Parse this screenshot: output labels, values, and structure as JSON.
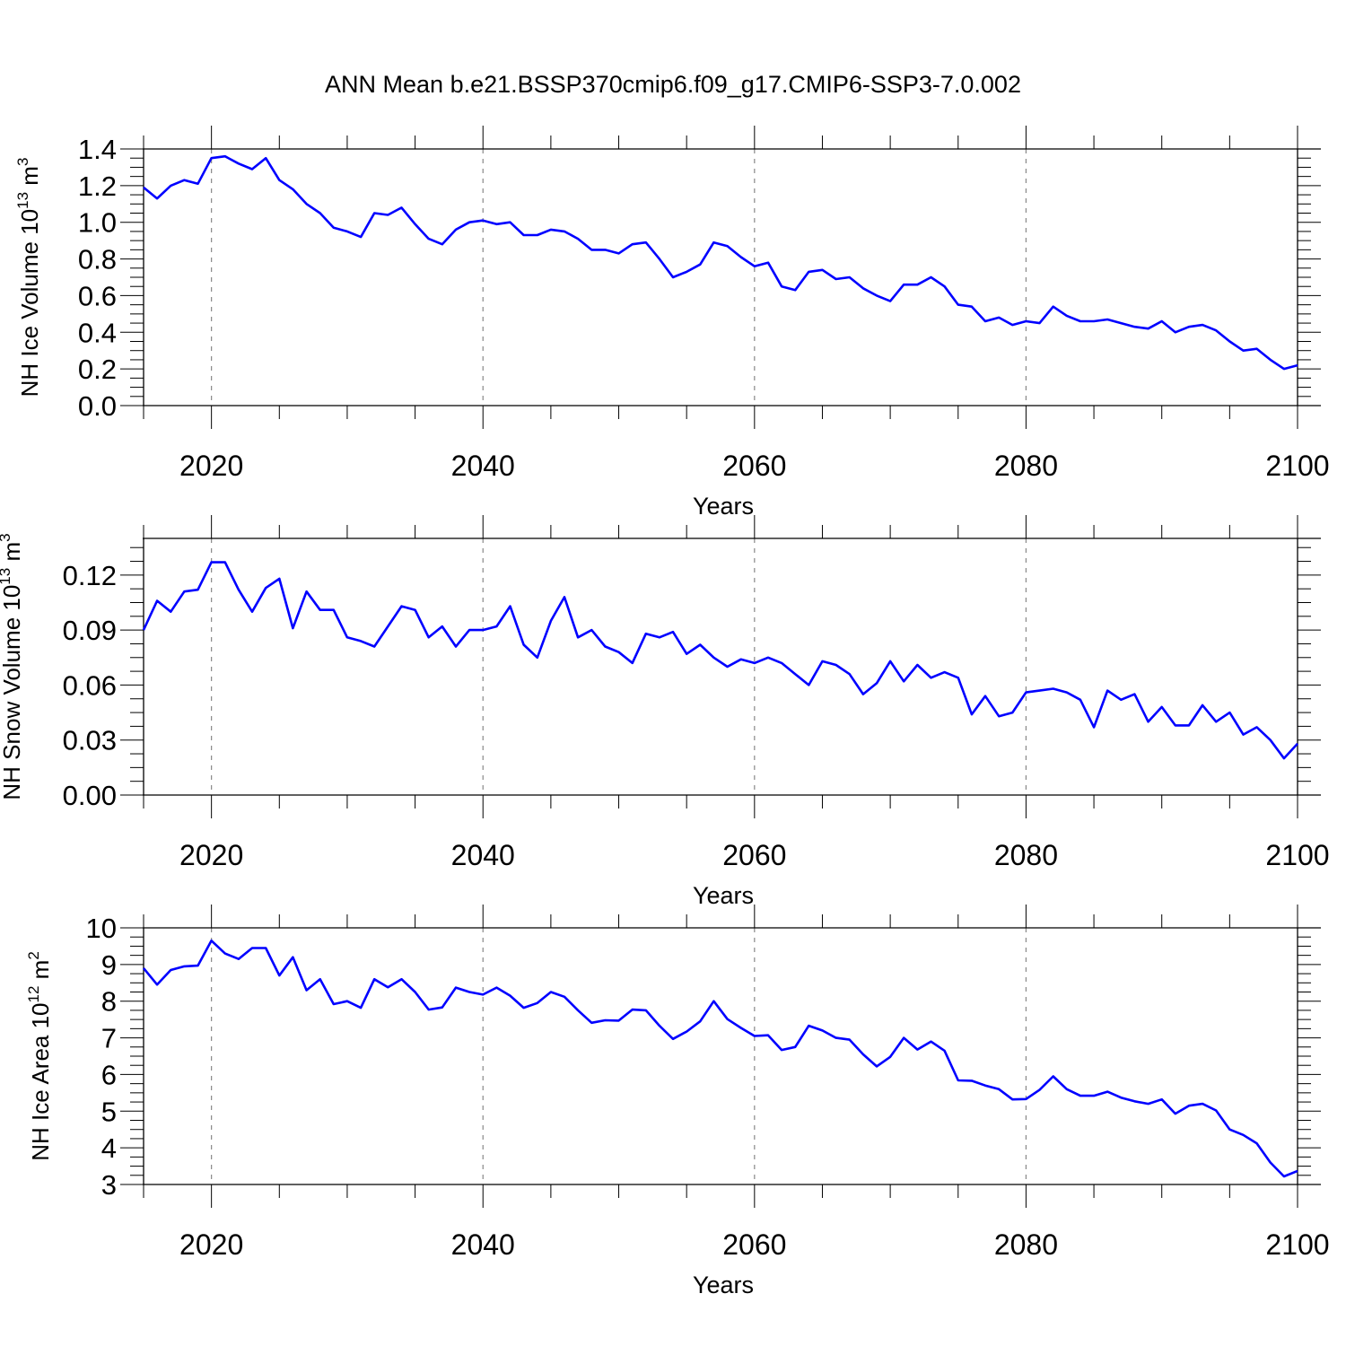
{
  "figure": {
    "title": "ANN Mean b.e21.BSSP370cmip6.f09_g17.CMIP6-SSP3-7.0.002"
  },
  "chart_data": [
    {
      "type": "line",
      "title": "",
      "xlabel": "Years",
      "ylabel": {
        "base": "NH Ice Volume 10",
        "exp": "13",
        "unit": " m",
        "unit_exp": "3"
      },
      "xlim": [
        2015,
        2100
      ],
      "ylim": [
        0.0,
        1.4
      ],
      "xticks": [
        2020,
        2040,
        2060,
        2080,
        2100
      ],
      "xtick_labels": [
        "2020",
        "2040",
        "2060",
        "2080",
        "2100"
      ],
      "yticks": [
        0.0,
        0.2,
        0.4,
        0.6,
        0.8,
        1.0,
        1.2,
        1.4
      ],
      "ytick_labels": [
        "0.0",
        "0.2",
        "0.4",
        "0.6",
        "0.8",
        "1.0",
        "1.2",
        "1.4"
      ],
      "grid": "dashed vertical at major x ticks",
      "series": [
        {
          "color": "#0000ff",
          "x_start": 2015,
          "x_step": 1,
          "values": [
            1.19,
            1.13,
            1.2,
            1.23,
            1.21,
            1.35,
            1.36,
            1.32,
            1.29,
            1.35,
            1.23,
            1.18,
            1.1,
            1.05,
            0.97,
            0.95,
            0.92,
            1.05,
            1.04,
            1.08,
            0.99,
            0.91,
            0.88,
            0.96,
            1.0,
            1.01,
            0.99,
            1.0,
            0.93,
            0.93,
            0.96,
            0.95,
            0.91,
            0.85,
            0.85,
            0.83,
            0.88,
            0.89,
            0.8,
            0.7,
            0.73,
            0.77,
            0.89,
            0.87,
            0.81,
            0.76,
            0.78,
            0.65,
            0.63,
            0.73,
            0.74,
            0.69,
            0.7,
            0.64,
            0.6,
            0.57,
            0.66,
            0.66,
            0.7,
            0.65,
            0.55,
            0.54,
            0.46,
            0.48,
            0.44,
            0.46,
            0.45,
            0.54,
            0.49,
            0.46,
            0.46,
            0.47,
            0.45,
            0.43,
            0.42,
            0.46,
            0.4,
            0.43,
            0.44,
            0.41,
            0.35,
            0.3,
            0.31,
            0.25,
            0.2,
            0.22
          ]
        }
      ]
    },
    {
      "type": "line",
      "title": "",
      "xlabel": "Years",
      "ylabel": {
        "base": "NH Snow Volume 10",
        "exp": "13",
        "unit": " m",
        "unit_exp": "3"
      },
      "xlim": [
        2015,
        2100
      ],
      "ylim": [
        0.0,
        0.14
      ],
      "xticks": [
        2020,
        2040,
        2060,
        2080,
        2100
      ],
      "xtick_labels": [
        "2020",
        "2040",
        "2060",
        "2080",
        "2100"
      ],
      "yticks": [
        0.0,
        0.03,
        0.06,
        0.09,
        0.12
      ],
      "ytick_labels": [
        "0.00",
        "0.03",
        "0.06",
        "0.09",
        "0.12"
      ],
      "grid": "dashed vertical at major x ticks",
      "series": [
        {
          "color": "#0000ff",
          "x_start": 2015,
          "x_step": 1,
          "values": [
            0.09,
            0.106,
            0.1,
            0.111,
            0.112,
            0.127,
            0.127,
            0.112,
            0.1,
            0.113,
            0.118,
            0.091,
            0.111,
            0.101,
            0.101,
            0.086,
            0.084,
            0.081,
            0.092,
            0.103,
            0.101,
            0.086,
            0.092,
            0.081,
            0.09,
            0.09,
            0.092,
            0.103,
            0.082,
            0.075,
            0.095,
            0.108,
            0.086,
            0.09,
            0.081,
            0.078,
            0.072,
            0.088,
            0.086,
            0.089,
            0.077,
            0.082,
            0.075,
            0.07,
            0.074,
            0.072,
            0.075,
            0.072,
            0.066,
            0.06,
            0.073,
            0.071,
            0.066,
            0.055,
            0.061,
            0.073,
            0.062,
            0.071,
            0.064,
            0.067,
            0.064,
            0.044,
            0.054,
            0.043,
            0.045,
            0.056,
            0.057,
            0.058,
            0.056,
            0.052,
            0.037,
            0.057,
            0.052,
            0.055,
            0.04,
            0.048,
            0.038,
            0.038,
            0.049,
            0.04,
            0.045,
            0.033,
            0.037,
            0.03,
            0.02,
            0.028
          ]
        }
      ]
    },
    {
      "type": "line",
      "title": "",
      "xlabel": "Years",
      "ylabel": {
        "base": "NH Ice Area 10",
        "exp": "12",
        "unit": " m",
        "unit_exp": "2"
      },
      "xlim": [
        2015,
        2100
      ],
      "ylim": [
        3,
        10
      ],
      "xticks": [
        2020,
        2040,
        2060,
        2080,
        2100
      ],
      "xtick_labels": [
        "2020",
        "2040",
        "2060",
        "2080",
        "2100"
      ],
      "yticks": [
        3,
        4,
        5,
        6,
        7,
        8,
        9,
        10
      ],
      "ytick_labels": [
        "3",
        "4",
        "5",
        "6",
        "7",
        "8",
        "9",
        "10"
      ],
      "grid": "dashed vertical at major x ticks",
      "series": [
        {
          "color": "#0000ff",
          "x_start": 2015,
          "x_step": 1,
          "values": [
            8.9,
            8.45,
            8.85,
            8.95,
            8.97,
            9.65,
            9.3,
            9.15,
            9.45,
            9.45,
            8.7,
            9.2,
            8.3,
            8.6,
            7.92,
            8.0,
            7.82,
            8.6,
            8.38,
            8.6,
            8.25,
            7.77,
            7.83,
            8.37,
            8.25,
            8.18,
            8.37,
            8.15,
            7.82,
            7.95,
            8.25,
            8.12,
            7.75,
            7.41,
            7.48,
            7.47,
            7.77,
            7.75,
            7.33,
            6.97,
            7.17,
            7.45,
            8.0,
            7.51,
            7.27,
            7.05,
            7.07,
            6.67,
            6.75,
            7.33,
            7.2,
            7.0,
            6.95,
            6.55,
            6.22,
            6.48,
            7.0,
            6.68,
            6.9,
            6.65,
            5.84,
            5.83,
            5.7,
            5.6,
            5.32,
            5.33,
            5.58,
            5.95,
            5.6,
            5.42,
            5.42,
            5.53,
            5.37,
            5.27,
            5.2,
            5.32,
            4.93,
            5.15,
            5.2,
            5.02,
            4.5,
            4.35,
            4.12,
            3.6,
            3.22,
            3.37
          ]
        }
      ]
    }
  ]
}
